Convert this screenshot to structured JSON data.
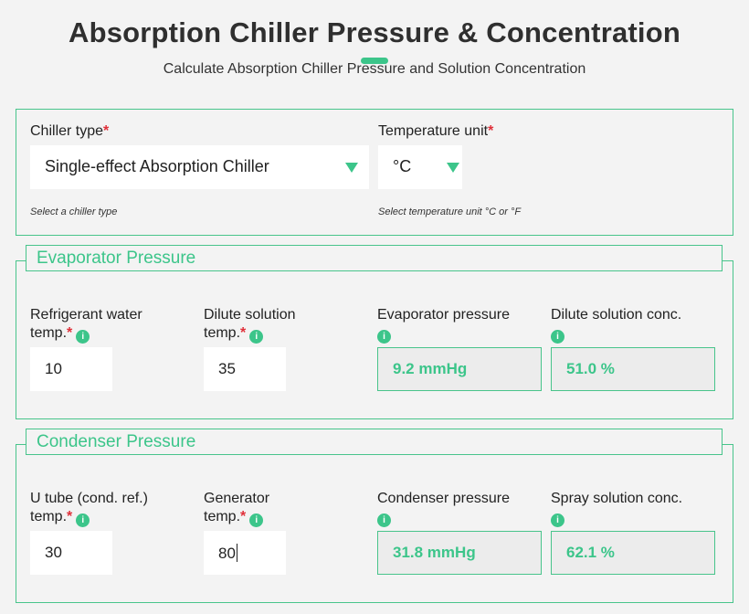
{
  "header": {
    "title": "Absorption Chiller Pressure & Concentration",
    "subtitle": "Calculate Absorption Chiller Pressure and Solution Concentration"
  },
  "settings": {
    "chiller_type_label": "Chiller type",
    "chiller_type_value": "Single-effect Absorption Chiller",
    "chiller_type_help": "Select a chiller type",
    "temp_unit_label": "Temperature unit",
    "temp_unit_value": "°C",
    "temp_unit_help": "Select temperature unit °C or °F",
    "required_mark": "*"
  },
  "evaporator": {
    "legend": "Evaporator Pressure",
    "refrigerant_label_1": "Refrigerant water",
    "refrigerant_label_2": "temp.",
    "refrigerant_value": "10",
    "dilute_label_1": "Dilute solution",
    "dilute_label_2": "temp.",
    "dilute_value": "35",
    "pressure_label": "Evaporator pressure",
    "pressure_value": "9.2 mmHg",
    "conc_label": "Dilute solution conc.",
    "conc_value": "51.0 %"
  },
  "condenser": {
    "legend": "Condenser Pressure",
    "utube_label_1": "U tube (cond. ref.)",
    "utube_label_2": "temp.",
    "utube_value": "30",
    "generator_label_1": "Generator",
    "generator_label_2": "temp.",
    "generator_value": "80",
    "pressure_label": "Condenser pressure",
    "pressure_value": "31.8 mmHg",
    "conc_label": "Spray solution conc.",
    "conc_value": "62.1 %"
  },
  "icons": {
    "info_glyph": "i",
    "caret": "chevron-down-icon"
  },
  "colors": {
    "accent": "#3cc58a",
    "required": "#e0303a",
    "background": "#f3f3f3"
  }
}
